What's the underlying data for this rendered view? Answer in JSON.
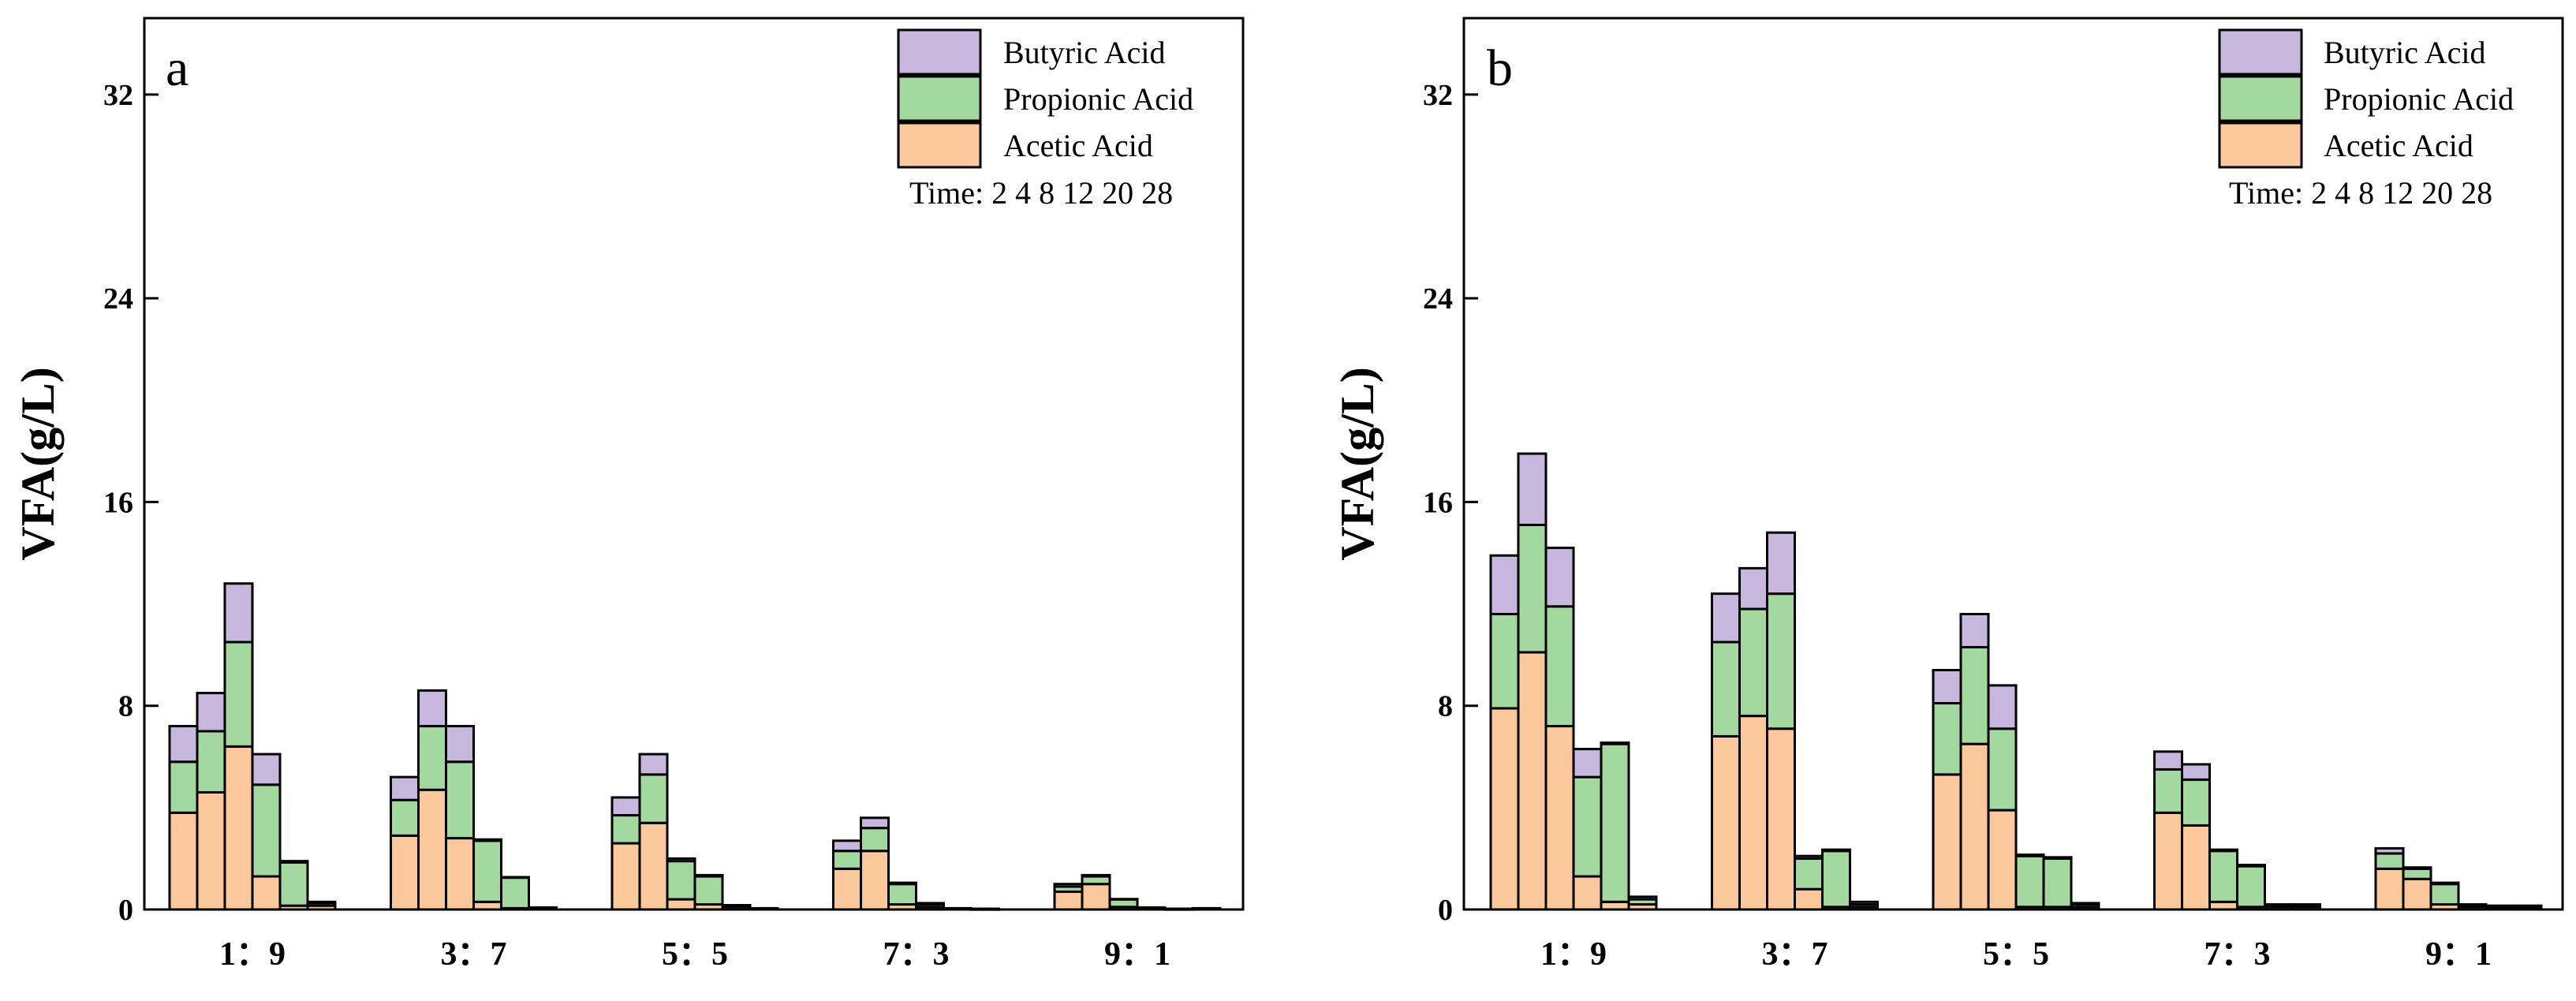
{
  "colors": {
    "acetic": "#FBC89B",
    "propionic": "#A3D99E",
    "butyric": "#C7B6DD",
    "stroke": "#000000"
  },
  "shared": {
    "ylabel": "VFA(g/L)",
    "categories": [
      "1：9",
      "3：7",
      "5：5",
      "7：3",
      "9：1"
    ],
    "yticks": [
      "0",
      "8",
      "16",
      "24",
      "32"
    ],
    "legend": [
      "Butyric Acid",
      "Propionic Acid",
      "Acetic Acid"
    ],
    "time_note": "Time: 2 4 8 12 20 28"
  },
  "chart_data": [
    {
      "type": "bar",
      "stacked": true,
      "panel": "a",
      "ylabel": "VFA(g/L)",
      "ylim": [
        0,
        35
      ],
      "yticks": [
        0,
        8,
        16,
        24,
        32
      ],
      "categories": [
        "1：9",
        "3：7",
        "5：5",
        "7：3",
        "9：1"
      ],
      "time_points": [
        2,
        4,
        8,
        12,
        20,
        28
      ],
      "series": [
        {
          "name": "Acetic Acid",
          "values": [
            [
              3.8,
              4.6,
              6.4,
              1.3,
              0.15,
              0.15
            ],
            [
              2.9,
              4.7,
              2.8,
              0.3,
              0.05,
              0.02
            ],
            [
              2.6,
              3.4,
              0.4,
              0.2,
              0.1,
              0.02
            ],
            [
              1.6,
              2.3,
              0.2,
              0.1,
              0.02,
              0.01
            ],
            [
              0.7,
              1.0,
              0.1,
              0.02,
              0.01,
              0.02
            ]
          ]
        },
        {
          "name": "Propionic Acid",
          "values": [
            [
              2.0,
              2.4,
              4.1,
              3.6,
              1.7,
              0.1
            ],
            [
              1.4,
              2.5,
              3.0,
              2.4,
              1.2,
              0.05
            ],
            [
              1.1,
              1.9,
              1.5,
              1.1,
              0.05,
              0.02
            ],
            [
              0.7,
              0.9,
              0.8,
              0.1,
              0.02,
              0.01
            ],
            [
              0.2,
              0.3,
              0.3,
              0.05,
              0.01,
              0.02
            ]
          ]
        },
        {
          "name": "Butyric Acid",
          "values": [
            [
              1.4,
              1.5,
              2.3,
              1.2,
              0.05,
              0.05
            ],
            [
              0.9,
              1.4,
              1.4,
              0.05,
              0.02,
              0.01
            ],
            [
              0.7,
              0.8,
              0.1,
              0.05,
              0.02,
              0.01
            ],
            [
              0.4,
              0.4,
              0.05,
              0.05,
              0.01,
              0.01
            ],
            [
              0.1,
              0.05,
              0.01,
              0.01,
              0.01,
              0.01
            ]
          ]
        }
      ]
    },
    {
      "type": "bar",
      "stacked": true,
      "panel": "b",
      "ylabel": "VFA(g/L)",
      "ylim": [
        0,
        35
      ],
      "yticks": [
        0,
        8,
        16,
        24,
        32
      ],
      "categories": [
        "1：9",
        "3：7",
        "5：5",
        "7：3",
        "9：1"
      ],
      "time_points": [
        2,
        4,
        8,
        12,
        20,
        28
      ],
      "series": [
        {
          "name": "Acetic Acid",
          "values": [
            [
              7.9,
              10.1,
              7.2,
              1.3,
              0.3,
              0.2
            ],
            [
              6.8,
              7.6,
              7.1,
              0.8,
              0.1,
              0.1
            ],
            [
              5.3,
              6.5,
              3.9,
              0.1,
              0.1,
              0.1
            ],
            [
              3.8,
              3.3,
              0.3,
              0.1,
              0.1,
              0.1
            ],
            [
              1.6,
              1.2,
              0.2,
              0.1,
              0.05,
              0.05
            ]
          ]
        },
        {
          "name": "Propionic Acid",
          "values": [
            [
              3.7,
              5.0,
              4.7,
              3.9,
              6.2,
              0.2
            ],
            [
              3.7,
              4.2,
              5.3,
              1.2,
              2.2,
              0.1
            ],
            [
              2.8,
              3.8,
              3.2,
              2.0,
              1.9,
              0.1
            ],
            [
              1.7,
              1.8,
              2.0,
              1.6,
              0.05,
              0.05
            ],
            [
              0.6,
              0.4,
              0.8,
              0.05,
              0.05,
              0.05
            ]
          ]
        },
        {
          "name": "Butyric Acid",
          "values": [
            [
              2.3,
              2.8,
              2.3,
              1.1,
              0.05,
              0.1
            ],
            [
              1.9,
              1.6,
              2.4,
              0.1,
              0.05,
              0.1
            ],
            [
              1.3,
              1.3,
              1.7,
              0.05,
              0.05,
              0.05
            ],
            [
              0.7,
              0.6,
              0.05,
              0.05,
              0.05,
              0.05
            ],
            [
              0.2,
              0.05,
              0.05,
              0.05,
              0.05,
              0.05
            ]
          ]
        }
      ]
    }
  ]
}
